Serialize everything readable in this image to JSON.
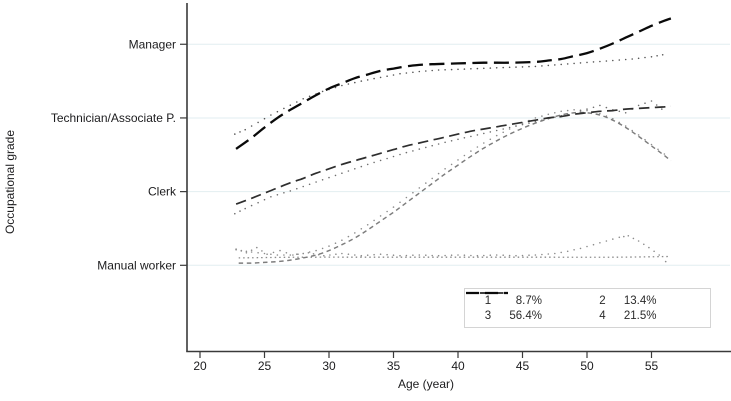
{
  "colors": {
    "background": "#ffffff",
    "axis": "#3a3a3a",
    "grid": "#e2eef0",
    "tick_text": "#1c1c1e",
    "legend_border": "#d4d4d4"
  },
  "legend": {
    "entries": [
      {
        "label": "1",
        "value": "8.7%",
        "series": "class1"
      },
      {
        "label": "2",
        "value": "13.4%",
        "series": "class2"
      },
      {
        "label": "3",
        "value": "56.4%",
        "series": "class3"
      },
      {
        "label": "4",
        "value": "21.5%",
        "series": "class4"
      }
    ]
  },
  "chart_data": {
    "type": "line",
    "title": "",
    "xlabel": "Age (year)",
    "ylabel": "Occupational grade",
    "x_ticks": [
      20,
      25,
      30,
      35,
      40,
      45,
      50,
      55
    ],
    "xlim": [
      19,
      61.2
    ],
    "ylim": [
      -0.17,
      4.57
    ],
    "grid": true,
    "legend_position": "bottom-right",
    "y_categories": [
      {
        "value": 1,
        "label": "Manual worker"
      },
      {
        "value": 2,
        "label": "Clerk"
      },
      {
        "value": 3,
        "label": "Technician/Associate P."
      },
      {
        "value": 4,
        "label": "Manager"
      }
    ],
    "series": [
      {
        "name": "class1",
        "legend_label": "1",
        "share": "8.7%",
        "role": "fitted",
        "style": "dot",
        "color": "#8a8a8a",
        "points": [
          [
            23,
            1.1
          ],
          [
            28,
            1.11
          ],
          [
            34,
            1.11
          ],
          [
            40,
            1.11
          ],
          [
            46,
            1.11
          ],
          [
            52,
            1.11
          ],
          [
            56.4,
            1.12
          ]
        ]
      },
      {
        "name": "class1-observed",
        "role": "observed",
        "style": "microdot",
        "color": "#8c8c8c",
        "points": [
          [
            22.8,
            1.22
          ],
          [
            23.6,
            1.17
          ],
          [
            24.4,
            1.24
          ],
          [
            25.2,
            1.15
          ],
          [
            26.2,
            1.2
          ],
          [
            27.2,
            1.14
          ],
          [
            28.4,
            1.17
          ],
          [
            29.6,
            1.13
          ],
          [
            31,
            1.16
          ],
          [
            32.5,
            1.13
          ],
          [
            34,
            1.15
          ],
          [
            35.5,
            1.13
          ],
          [
            37,
            1.14
          ],
          [
            38.5,
            1.13
          ],
          [
            40,
            1.14
          ],
          [
            41.5,
            1.13
          ],
          [
            43,
            1.14
          ],
          [
            44.5,
            1.13
          ],
          [
            46,
            1.14
          ],
          [
            47.5,
            1.16
          ],
          [
            48.5,
            1.19
          ],
          [
            49.5,
            1.23
          ],
          [
            50.5,
            1.28
          ],
          [
            51.5,
            1.33
          ],
          [
            52.5,
            1.38
          ],
          [
            53.2,
            1.4
          ],
          [
            54,
            1.33
          ],
          [
            54.8,
            1.24
          ],
          [
            55.6,
            1.14
          ],
          [
            56.1,
            1.05
          ],
          [
            56.4,
            0.99
          ]
        ]
      },
      {
        "name": "class2",
        "legend_label": "2",
        "share": "13.4%",
        "role": "fitted",
        "style": "shortdash",
        "color": "#7d7d7d",
        "points": [
          [
            23,
            1.03
          ],
          [
            24,
            1.03
          ],
          [
            25,
            1.04
          ],
          [
            26,
            1.05
          ],
          [
            27,
            1.07
          ],
          [
            28,
            1.1
          ],
          [
            29,
            1.14
          ],
          [
            30,
            1.2
          ],
          [
            31,
            1.28
          ],
          [
            32,
            1.37
          ],
          [
            33,
            1.48
          ],
          [
            34,
            1.6
          ],
          [
            35,
            1.72
          ],
          [
            36,
            1.85
          ],
          [
            37,
            1.98
          ],
          [
            38,
            2.11
          ],
          [
            39,
            2.24
          ],
          [
            40,
            2.36
          ],
          [
            41,
            2.48
          ],
          [
            42,
            2.59
          ],
          [
            43,
            2.69
          ],
          [
            44,
            2.78
          ],
          [
            45,
            2.86
          ],
          [
            46,
            2.93
          ],
          [
            47,
            2.99
          ],
          [
            48,
            3.04
          ],
          [
            49,
            3.07
          ],
          [
            50,
            3.07
          ],
          [
            51,
            3.04
          ],
          [
            52,
            2.97
          ],
          [
            53,
            2.87
          ],
          [
            54,
            2.75
          ],
          [
            55,
            2.62
          ],
          [
            56,
            2.49
          ],
          [
            56.5,
            2.42
          ]
        ]
      },
      {
        "name": "class2-observed",
        "role": "observed",
        "style": "microdot",
        "color": "#8c8c8c",
        "points": [
          [
            22.8,
            1.21
          ],
          [
            24,
            1.18
          ],
          [
            25,
            1.16
          ],
          [
            26,
            1.14
          ],
          [
            27,
            1.14
          ],
          [
            28,
            1.16
          ],
          [
            29,
            1.2
          ],
          [
            30,
            1.26
          ],
          [
            31,
            1.34
          ],
          [
            32,
            1.44
          ],
          [
            33,
            1.55
          ],
          [
            34,
            1.67
          ],
          [
            35,
            1.79
          ],
          [
            36,
            1.92
          ],
          [
            37,
            2.05
          ],
          [
            38,
            2.18
          ],
          [
            39,
            2.31
          ],
          [
            40,
            2.43
          ],
          [
            41,
            2.55
          ],
          [
            42,
            2.66
          ],
          [
            43,
            2.76
          ],
          [
            44,
            2.85
          ],
          [
            45,
            2.93
          ],
          [
            46,
            3.0
          ],
          [
            47,
            3.05
          ],
          [
            48,
            3.09
          ],
          [
            49,
            3.11
          ],
          [
            50,
            3.1
          ],
          [
            51,
            3.06
          ],
          [
            52,
            2.99
          ],
          [
            53,
            2.89
          ],
          [
            54,
            2.77
          ],
          [
            55,
            2.64
          ],
          [
            56,
            2.51
          ],
          [
            56.4,
            2.44
          ]
        ]
      },
      {
        "name": "class3",
        "legend_label": "3",
        "share": "56.4%",
        "role": "fitted",
        "style": "longdash",
        "color": "#2e2e2e",
        "points": [
          [
            22.8,
            1.83
          ],
          [
            24,
            1.91
          ],
          [
            25,
            1.98
          ],
          [
            26,
            2.05
          ],
          [
            27,
            2.12
          ],
          [
            28,
            2.18
          ],
          [
            29,
            2.25
          ],
          [
            30,
            2.31
          ],
          [
            31,
            2.37
          ],
          [
            32,
            2.42
          ],
          [
            33,
            2.47
          ],
          [
            34,
            2.52
          ],
          [
            35,
            2.57
          ],
          [
            36,
            2.62
          ],
          [
            37,
            2.66
          ],
          [
            38,
            2.7
          ],
          [
            39,
            2.74
          ],
          [
            40,
            2.78
          ],
          [
            41,
            2.82
          ],
          [
            42,
            2.85
          ],
          [
            43,
            2.88
          ],
          [
            44,
            2.91
          ],
          [
            45,
            2.94
          ],
          [
            46,
            2.97
          ],
          [
            47,
            3.0
          ],
          [
            48,
            3.02
          ],
          [
            49,
            3.05
          ],
          [
            50,
            3.07
          ],
          [
            51,
            3.09
          ],
          [
            52,
            3.1
          ],
          [
            53,
            3.12
          ],
          [
            54,
            3.13
          ],
          [
            55,
            3.14
          ],
          [
            56,
            3.15
          ],
          [
            56.5,
            3.16
          ]
        ]
      },
      {
        "name": "class3-observed",
        "role": "observed",
        "style": "microdot",
        "color": "#6e6e6e",
        "points": [
          [
            22.7,
            1.7
          ],
          [
            23.5,
            1.77
          ],
          [
            24.5,
            1.85
          ],
          [
            25.5,
            1.93
          ],
          [
            27,
            2.01
          ],
          [
            28.5,
            2.1
          ],
          [
            30,
            2.19
          ],
          [
            31.5,
            2.28
          ],
          [
            33,
            2.37
          ],
          [
            34.5,
            2.45
          ],
          [
            36,
            2.53
          ],
          [
            37.5,
            2.6
          ],
          [
            39,
            2.67
          ],
          [
            40.5,
            2.73
          ],
          [
            42,
            2.79
          ],
          [
            43.5,
            2.85
          ],
          [
            45,
            2.91
          ],
          [
            46.5,
            2.97
          ],
          [
            48,
            3.03
          ],
          [
            49,
            3.07
          ],
          [
            50,
            3.12
          ],
          [
            51,
            3.17
          ],
          [
            52,
            3.11
          ],
          [
            53,
            3.07
          ],
          [
            54,
            3.17
          ],
          [
            55,
            3.23
          ],
          [
            55.8,
            3.12
          ],
          [
            56.3,
            3.06
          ]
        ]
      },
      {
        "name": "class4",
        "legend_label": "4",
        "share": "21.5%",
        "role": "fitted",
        "style": "xlongdash",
        "color": "#0a0a0a",
        "points": [
          [
            22.8,
            2.58
          ],
          [
            24,
            2.73
          ],
          [
            25,
            2.87
          ],
          [
            26,
            3.0
          ],
          [
            27,
            3.11
          ],
          [
            28,
            3.21
          ],
          [
            29,
            3.31
          ],
          [
            30,
            3.4
          ],
          [
            31,
            3.47
          ],
          [
            32,
            3.54
          ],
          [
            33,
            3.59
          ],
          [
            34,
            3.64
          ],
          [
            35,
            3.67
          ],
          [
            36,
            3.7
          ],
          [
            37,
            3.72
          ],
          [
            38,
            3.73
          ],
          [
            40,
            3.74
          ],
          [
            42,
            3.75
          ],
          [
            44,
            3.75
          ],
          [
            46,
            3.76
          ],
          [
            47,
            3.78
          ],
          [
            48,
            3.8
          ],
          [
            49,
            3.84
          ],
          [
            50,
            3.88
          ],
          [
            51,
            3.94
          ],
          [
            52,
            4.01
          ],
          [
            53,
            4.09
          ],
          [
            54,
            4.17
          ],
          [
            55,
            4.25
          ],
          [
            56,
            4.32
          ],
          [
            56.5,
            4.35
          ]
        ]
      },
      {
        "name": "class4-observed",
        "role": "observed",
        "style": "microdot",
        "color": "#555555",
        "points": [
          [
            22.7,
            2.78
          ],
          [
            23.5,
            2.84
          ],
          [
            24.5,
            2.94
          ],
          [
            25.5,
            3.04
          ],
          [
            26.5,
            3.13
          ],
          [
            28,
            3.26
          ],
          [
            29.5,
            3.36
          ],
          [
            31,
            3.44
          ],
          [
            32.5,
            3.5
          ],
          [
            34,
            3.55
          ],
          [
            35.5,
            3.6
          ],
          [
            37,
            3.63
          ],
          [
            38.5,
            3.65
          ],
          [
            40,
            3.66
          ],
          [
            41.5,
            3.67
          ],
          [
            43,
            3.68
          ],
          [
            44.5,
            3.69
          ],
          [
            46,
            3.7
          ],
          [
            47.5,
            3.72
          ],
          [
            49,
            3.74
          ],
          [
            50.5,
            3.76
          ],
          [
            52,
            3.78
          ],
          [
            53.5,
            3.8
          ],
          [
            55,
            3.83
          ],
          [
            56.3,
            3.87
          ]
        ]
      }
    ]
  }
}
